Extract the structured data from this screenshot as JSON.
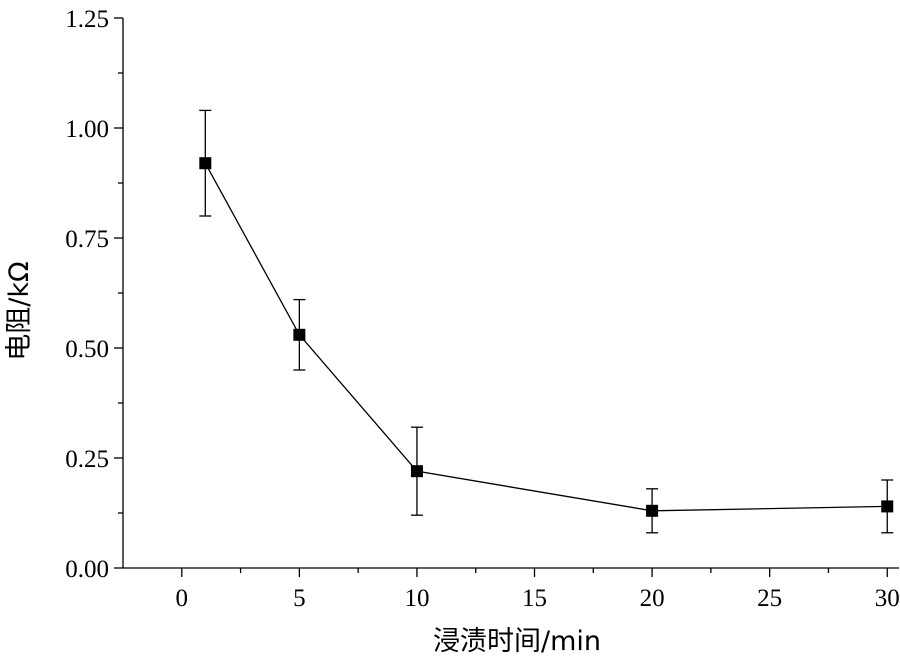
{
  "chart_data": {
    "type": "line",
    "xlabel": "浸渍时间/min",
    "ylabel": "电阻/kΩ",
    "xlim": [
      -2.5,
      30.5
    ],
    "ylim": [
      0,
      1.25
    ],
    "x_ticks": [
      0,
      5,
      10,
      15,
      20,
      25,
      30
    ],
    "x_tick_labels": [
      "0",
      "5",
      "10",
      "15",
      "20",
      "25",
      "30"
    ],
    "y_ticks": [
      0,
      0.25,
      0.5,
      0.75,
      1.0,
      1.25
    ],
    "y_tick_labels": [
      "0.00",
      "0.25",
      "0.50",
      "0.75",
      "1.00",
      "1.25"
    ],
    "marker": "square",
    "line_color": "#000000",
    "grid": false,
    "legend": false,
    "series": [
      {
        "x": [
          1,
          5,
          10,
          20,
          30
        ],
        "values": [
          0.92,
          0.53,
          0.22,
          0.13,
          0.14
        ],
        "error_upper": [
          1.04,
          0.61,
          0.32,
          0.18,
          0.2
        ],
        "error_lower": [
          0.8,
          0.45,
          0.12,
          0.08,
          0.08
        ]
      }
    ]
  }
}
